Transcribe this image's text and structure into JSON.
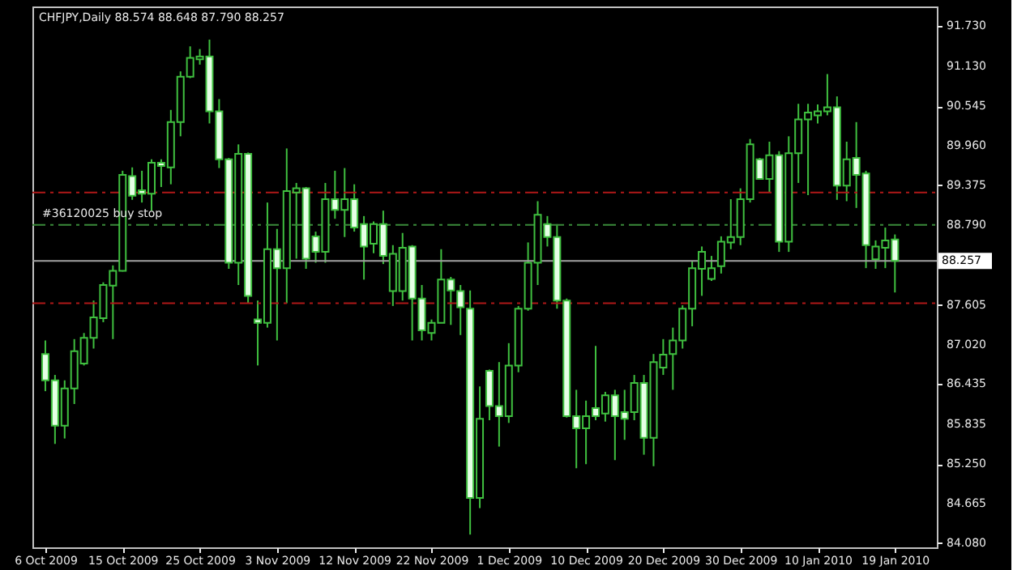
{
  "chart_data": {
    "type": "candlestick",
    "title": "CHFJPY,Daily  88.574 88.648 87.790 88.257",
    "categories": [
      "6 Oct 2009",
      null,
      null,
      null,
      null,
      null,
      null,
      null,
      "15 Oct 2009",
      null,
      null,
      null,
      null,
      null,
      null,
      null,
      "25 Oct 2009",
      null,
      null,
      null,
      null,
      null,
      null,
      null,
      "3 Nov 2009",
      null,
      null,
      null,
      null,
      null,
      null,
      null,
      "12 Nov 2009",
      null,
      null,
      null,
      null,
      null,
      null,
      null,
      "22 Nov 2009",
      null,
      null,
      null,
      null,
      null,
      null,
      null,
      "1 Dec 2009",
      null,
      null,
      null,
      null,
      null,
      null,
      null,
      "10 Dec 2009",
      null,
      null,
      null,
      null,
      null,
      null,
      null,
      "20 Dec 2009",
      null,
      null,
      null,
      null,
      null,
      null,
      null,
      "30 Dec 2009",
      null,
      null,
      null,
      null,
      null,
      null,
      null,
      "10 Jan 2010",
      null,
      null,
      null,
      null,
      null,
      null,
      null,
      "19 Jan 2010"
    ],
    "ohlc": [
      [
        86.88,
        87.08,
        86.33,
        86.49
      ],
      [
        86.49,
        86.57,
        85.55,
        85.82
      ],
      [
        85.82,
        86.49,
        85.63,
        86.37
      ],
      [
        86.37,
        87.1,
        86.14,
        86.92
      ],
      [
        86.74,
        87.19,
        86.71,
        87.12
      ],
      [
        87.12,
        87.67,
        86.96,
        87.42
      ],
      [
        87.41,
        87.94,
        87.35,
        87.9
      ],
      [
        87.89,
        88.19,
        87.1,
        88.11
      ],
      [
        88.11,
        89.59,
        88.1,
        89.53
      ],
      [
        89.51,
        89.64,
        89.16,
        89.22
      ],
      [
        89.3,
        89.59,
        89.12,
        89.25
      ],
      [
        89.25,
        89.76,
        89.0,
        89.71
      ],
      [
        89.71,
        89.76,
        89.35,
        89.66
      ],
      [
        89.64,
        90.49,
        89.39,
        90.31
      ],
      [
        90.31,
        91.06,
        90.1,
        90.98
      ],
      [
        90.98,
        91.43,
        90.96,
        91.26
      ],
      [
        91.24,
        91.39,
        91.16,
        91.28
      ],
      [
        91.28,
        91.53,
        90.29,
        90.47
      ],
      [
        90.47,
        90.65,
        89.63,
        89.76
      ],
      [
        89.76,
        89.78,
        88.14,
        88.23
      ],
      [
        88.23,
        89.98,
        87.9,
        89.84
      ],
      [
        89.84,
        89.86,
        87.63,
        87.74
      ],
      [
        87.39,
        87.67,
        86.71,
        87.34
      ],
      [
        87.34,
        89.12,
        87.27,
        88.43
      ],
      [
        88.43,
        88.73,
        87.08,
        88.15
      ],
      [
        88.15,
        89.92,
        87.63,
        89.29
      ],
      [
        89.27,
        89.41,
        88.29,
        89.33
      ],
      [
        89.33,
        89.35,
        88.14,
        88.29
      ],
      [
        88.62,
        88.69,
        88.23,
        88.39
      ],
      [
        88.39,
        89.41,
        88.23,
        89.17
      ],
      [
        89.17,
        89.59,
        88.88,
        89.01
      ],
      [
        89.01,
        89.63,
        88.61,
        89.17
      ],
      [
        89.17,
        89.39,
        88.69,
        88.75
      ],
      [
        88.8,
        88.92,
        87.98,
        88.47
      ],
      [
        88.51,
        88.84,
        88.37,
        88.8
      ],
      [
        88.8,
        89.0,
        88.21,
        88.33
      ],
      [
        87.81,
        88.49,
        87.59,
        88.36
      ],
      [
        87.81,
        88.67,
        87.67,
        88.45
      ],
      [
        88.47,
        88.49,
        87.08,
        87.7
      ],
      [
        87.7,
        87.9,
        87.08,
        87.23
      ],
      [
        87.19,
        87.39,
        87.08,
        87.34
      ],
      [
        87.34,
        88.43,
        87.34,
        87.98
      ],
      [
        87.98,
        88.02,
        87.31,
        87.82
      ],
      [
        87.81,
        87.9,
        87.16,
        87.57
      ],
      [
        87.55,
        87.82,
        84.21,
        84.75
      ],
      [
        84.75,
        86.4,
        84.6,
        85.92
      ],
      [
        86.63,
        86.65,
        85.9,
        86.11
      ],
      [
        86.11,
        86.76,
        85.51,
        85.96
      ],
      [
        85.96,
        87.04,
        85.86,
        86.71
      ],
      [
        86.71,
        87.59,
        86.61,
        87.55
      ],
      [
        87.55,
        88.53,
        87.52,
        88.23
      ],
      [
        88.23,
        89.14,
        87.9,
        88.94
      ],
      [
        88.8,
        88.92,
        88.47,
        88.61
      ],
      [
        88.61,
        88.8,
        87.55,
        87.67
      ],
      [
        87.67,
        87.7,
        85.94,
        85.96
      ],
      [
        85.96,
        86.35,
        85.19,
        85.78
      ],
      [
        85.78,
        86.19,
        85.25,
        85.96
      ],
      [
        86.08,
        87.0,
        85.9,
        85.96
      ],
      [
        86.0,
        86.32,
        85.88,
        86.27
      ],
      [
        86.27,
        86.35,
        85.31,
        85.96
      ],
      [
        86.02,
        86.35,
        85.61,
        85.92
      ],
      [
        86.02,
        86.57,
        85.9,
        86.45
      ],
      [
        86.45,
        86.57,
        85.39,
        85.64
      ],
      [
        85.64,
        86.88,
        85.22,
        86.76
      ],
      [
        86.68,
        87.1,
        86.57,
        86.87
      ],
      [
        86.88,
        87.27,
        86.35,
        87.08
      ],
      [
        87.08,
        87.6,
        86.96,
        87.55
      ],
      [
        87.55,
        88.25,
        87.29,
        88.15
      ],
      [
        88.14,
        88.47,
        87.74,
        88.39
      ],
      [
        87.99,
        88.33,
        87.96,
        88.15
      ],
      [
        88.18,
        88.62,
        88.07,
        88.54
      ],
      [
        88.53,
        89.17,
        88.43,
        88.61
      ],
      [
        88.61,
        89.33,
        88.49,
        89.17
      ],
      [
        89.17,
        90.06,
        89.12,
        89.98
      ],
      [
        89.76,
        89.78,
        89.46,
        89.47
      ],
      [
        89.47,
        90.02,
        89.27,
        89.82
      ],
      [
        89.82,
        89.88,
        88.39,
        88.54
      ],
      [
        88.54,
        90.1,
        88.39,
        89.85
      ],
      [
        89.85,
        90.58,
        89.41,
        90.35
      ],
      [
        90.35,
        90.58,
        89.23,
        90.45
      ],
      [
        90.41,
        90.57,
        90.29,
        90.47
      ],
      [
        90.47,
        91.02,
        90.41,
        90.53
      ],
      [
        90.53,
        90.69,
        89.16,
        89.37
      ],
      [
        89.37,
        90.02,
        89.14,
        89.76
      ],
      [
        89.78,
        90.31,
        89.04,
        89.53
      ],
      [
        89.55,
        89.59,
        88.15,
        88.49
      ],
      [
        88.28,
        88.56,
        88.14,
        88.47
      ],
      [
        88.45,
        88.75,
        88.15,
        88.56
      ],
      [
        88.574,
        88.648,
        87.79,
        88.257
      ]
    ],
    "color": "#3fbf3f",
    "ylim": [
      84.02,
      92.02
    ],
    "yticks": [
      {
        "value": 84.08,
        "label": "84.080"
      },
      {
        "value": 84.665,
        "label": "84.665"
      },
      {
        "value": 85.25,
        "label": "85.250"
      },
      {
        "value": 85.835,
        "label": "85.835"
      },
      {
        "value": 86.435,
        "label": "86.435"
      },
      {
        "value": 87.02,
        "label": "87.020"
      },
      {
        "value": 87.605,
        "label": "87.605"
      },
      {
        "value": 88.79,
        "label": "88.790"
      },
      {
        "value": 89.375,
        "label": "89.375"
      },
      {
        "value": 89.96,
        "label": "89.960"
      },
      {
        "value": 90.545,
        "label": "90.545"
      },
      {
        "value": 91.13,
        "label": "91.130"
      },
      {
        "value": 91.73,
        "label": "91.730"
      }
    ],
    "ref_lines": [
      {
        "axis": "y",
        "value": 89.27,
        "color": "#b01818",
        "line_style": "dashed"
      },
      {
        "axis": "y",
        "value": 87.63,
        "color": "#b01818",
        "line_style": "dashed"
      },
      {
        "axis": "y",
        "value": 88.79,
        "label": "#36120025 buy stop",
        "color": "#3a8a3a",
        "line_style": "dashed"
      },
      {
        "axis": "y",
        "value": 88.257,
        "label": "88.257",
        "color": "#a0a0a0",
        "line_style": "solid"
      }
    ],
    "grid": false
  }
}
